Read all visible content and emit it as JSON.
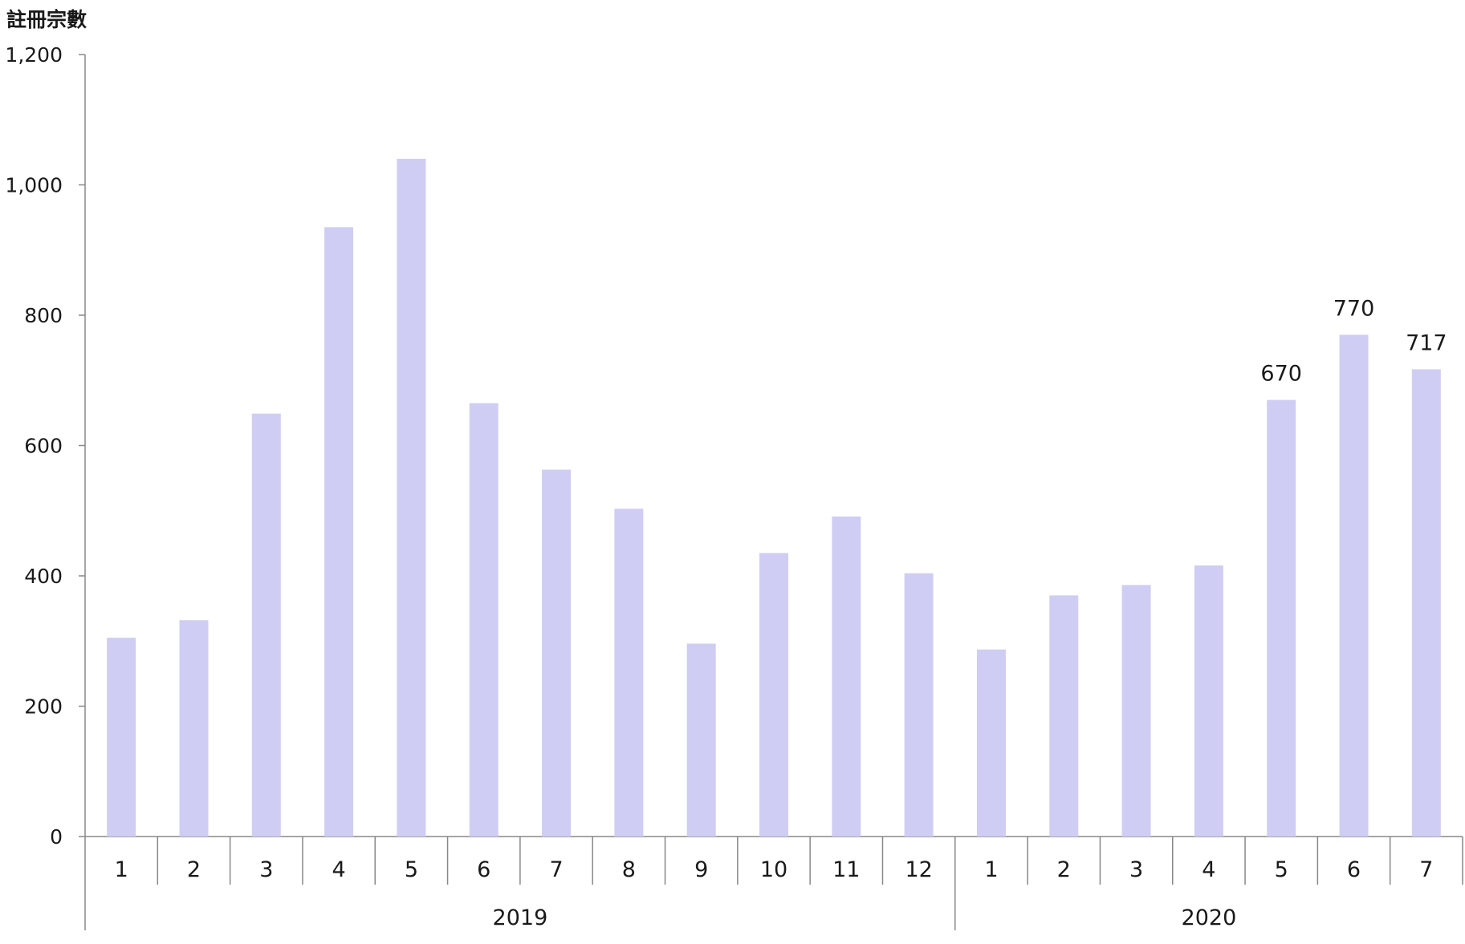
{
  "chart_data": {
    "type": "bar",
    "ylabel": "註冊宗數",
    "ylim": [
      0,
      1200
    ],
    "yticks": [
      0,
      200,
      400,
      600,
      800,
      1000,
      1200
    ],
    "ytick_labels": [
      "0",
      "200",
      "400",
      "600",
      "800",
      "1,000",
      "1,200"
    ],
    "groups": [
      {
        "label": "2019",
        "categories": [
          "1",
          "2",
          "3",
          "4",
          "5",
          "6",
          "7",
          "8",
          "9",
          "10",
          "11",
          "12"
        ]
      },
      {
        "label": "2020",
        "categories": [
          "1",
          "2",
          "3",
          "4",
          "5",
          "6",
          "7"
        ]
      }
    ],
    "series": [
      {
        "color": "#d0cdf4",
        "values": [
          305,
          332,
          649,
          935,
          1040,
          665,
          563,
          503,
          296,
          435,
          491,
          404,
          287,
          370,
          386,
          416,
          670,
          770,
          717
        ]
      }
    ],
    "data_labels": [
      "",
      "",
      "",
      "",
      "",
      "",
      "",
      "",
      "",
      "",
      "",
      "",
      "",
      "",
      "",
      "",
      "670",
      "770",
      "717"
    ],
    "grid": false,
    "legend": "none"
  }
}
